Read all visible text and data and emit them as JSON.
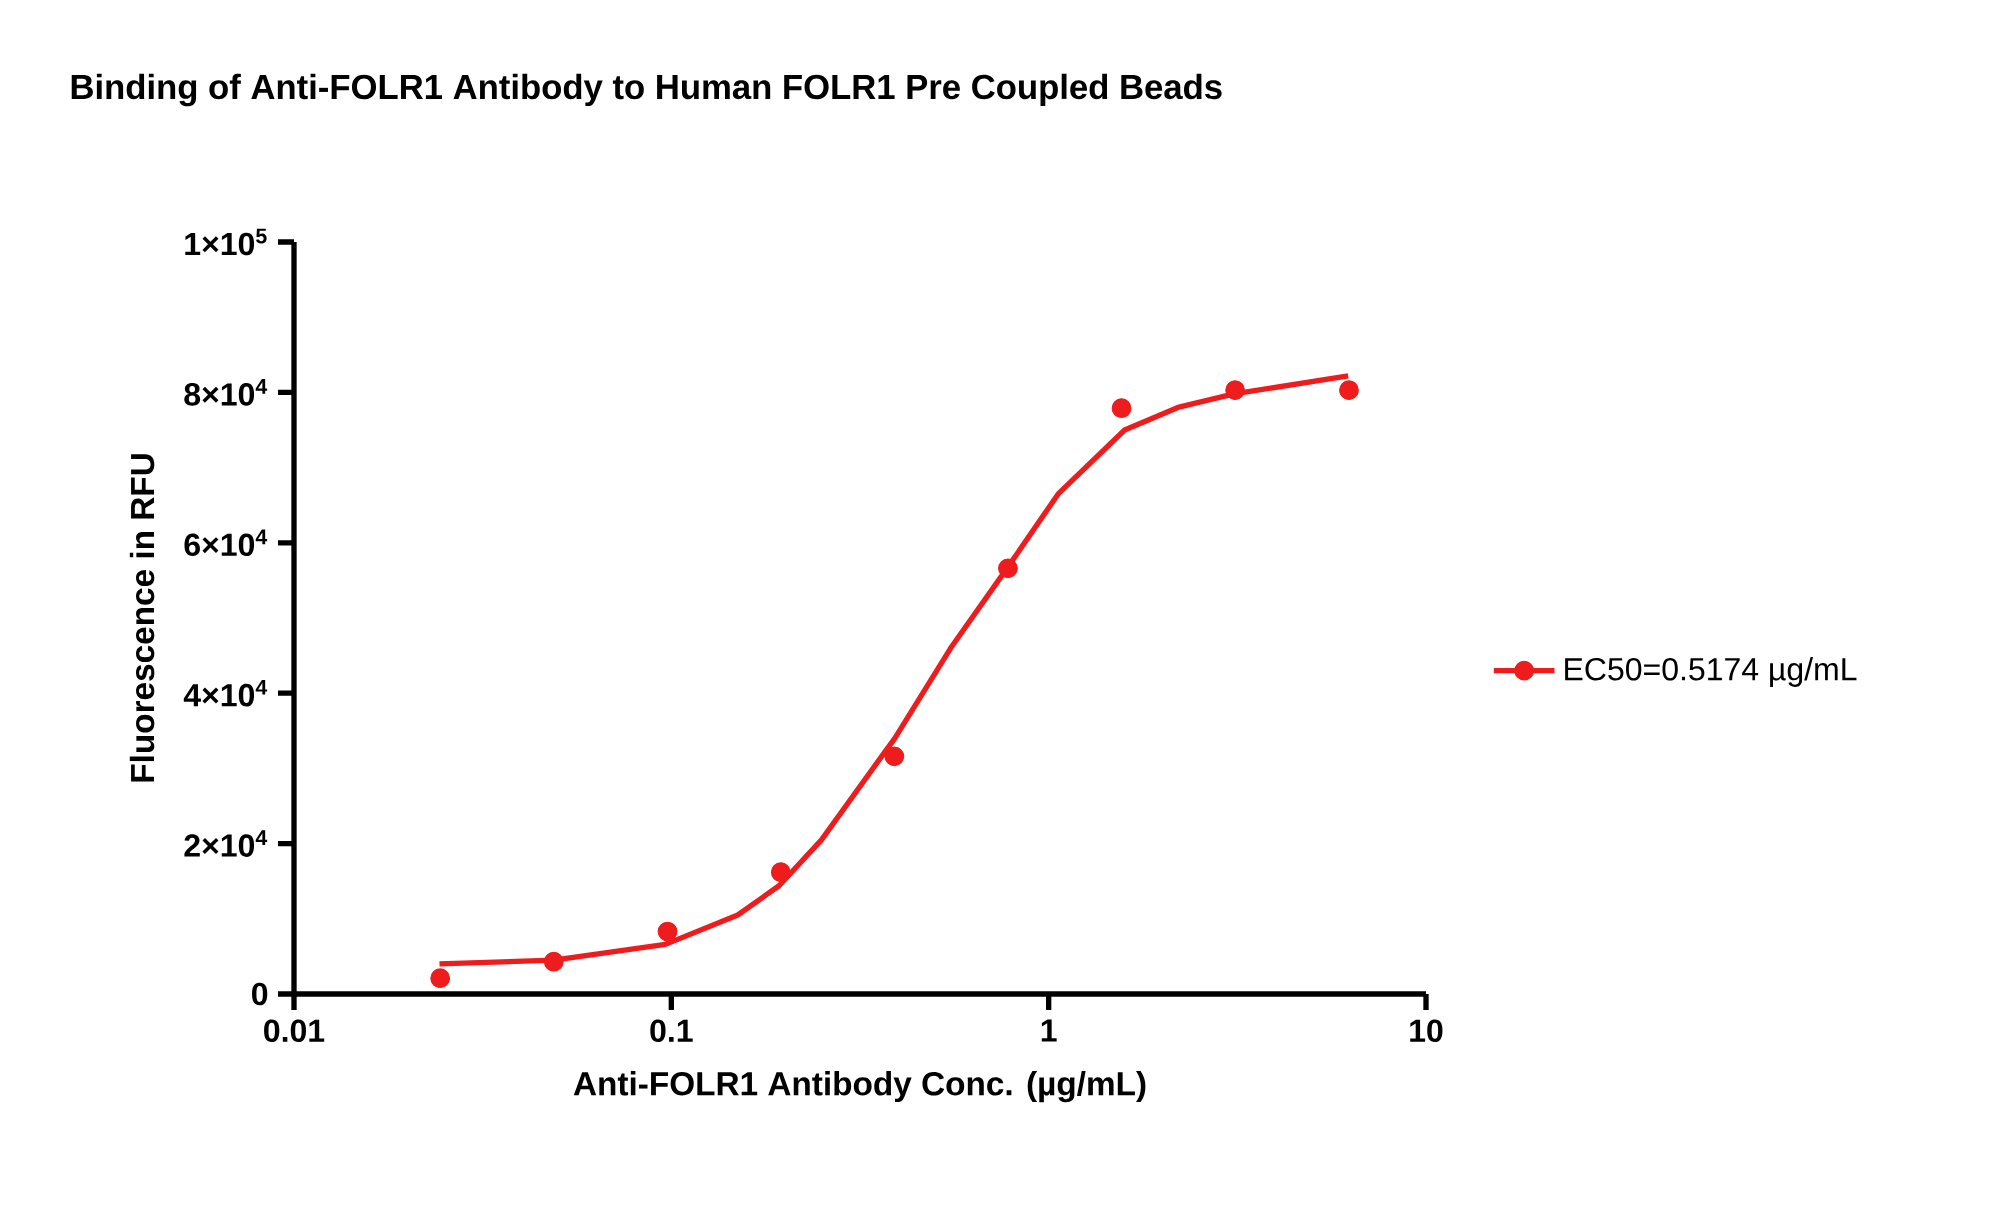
{
  "chart_data": {
    "type": "scatter",
    "title": "Binding of Anti-FOLR1 Antibody to Human FOLR1 Pre Coupled Beads",
    "xlabel": "Anti-FOLR1 Antibody  Conc. (µg/mL)",
    "ylabel": "Fluorescence in RFU",
    "log": "x",
    "xlim": [
      0.01,
      10
    ],
    "ylim": [
      0,
      100000
    ],
    "xticks": [
      0.01,
      0.1,
      1,
      10
    ],
    "yticks": [
      0,
      {
        "value": 20000,
        "label": "2×10$^{4}$"
      },
      {
        "value": 40000,
        "label": "4×10$^{4}$"
      },
      {
        "value": 60000,
        "label": "6×10$^{4}$"
      },
      {
        "value": 80000,
        "label": "8×10$^{4}$"
      },
      {
        "value": 100000,
        "label": "1×10$^{5}$"
      }
    ],
    "legend": "right",
    "series": [
      {
        "name": "EC50=0.5174 µg/mL",
        "color": "#ee1c1c",
        "marker": "circle",
        "x": [
          0.0244,
          0.0488,
          0.0977,
          0.195,
          0.39,
          0.78,
          1.56,
          3.12,
          6.25
        ],
        "values": [
          2100,
          4300,
          8300,
          16200,
          31600,
          56600,
          77900,
          80300,
          80300
        ]
      },
      {
        "type": "line",
        "color": "#ee1c1c",
        "marker": "none",
        "x": [
          0.0243,
          0.0488,
          0.0964,
          0.15,
          0.193,
          0.25,
          0.355,
          0.391,
          0.55,
          0.783,
          1.06,
          1.59,
          2.2,
          3.1,
          6.22
        ],
        "values": [
          4000,
          4500,
          6600,
          10500,
          14400,
          20500,
          31100,
          34000,
          46000,
          56900,
          66500,
          75000,
          78000,
          79800,
          82200
        ]
      }
    ]
  }
}
